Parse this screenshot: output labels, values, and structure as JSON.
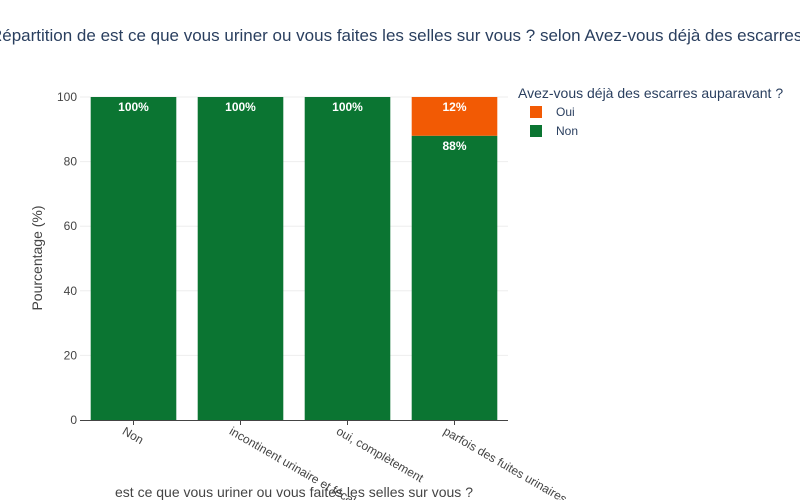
{
  "chart_data": {
    "type": "bar",
    "stacked": true,
    "title": "Répartition de est ce que vous uriner ou vous faites les selles sur vous ? selon Avez-vous déjà des escarres auparavant ?",
    "xlabel": "est ce que vous uriner ou vous faites les selles sur vous ?",
    "ylabel": "Pourcentage (%)",
    "ylim": [
      0,
      100
    ],
    "yticks": [
      0,
      20,
      40,
      60,
      80,
      100
    ],
    "grid": true,
    "categories": [
      "Non",
      "incontinent urinaire et fécale",
      "oui, complètement",
      "parfois des fuites urinaires"
    ],
    "series": [
      {
        "name": "Non",
        "color": "#0b7532",
        "values": [
          100,
          100,
          100,
          88
        ],
        "labels": [
          "100%",
          "100%",
          "100%",
          "88%"
        ]
      },
      {
        "name": "Oui",
        "color": "#f25a04",
        "values": [
          0,
          0,
          0,
          12
        ],
        "labels": [
          "",
          "",
          "",
          "12%"
        ]
      }
    ],
    "legend": {
      "title": "Avez-vous déjà des escarres auparavant ?",
      "placement": "top-right",
      "order": [
        "Oui",
        "Non"
      ]
    }
  }
}
